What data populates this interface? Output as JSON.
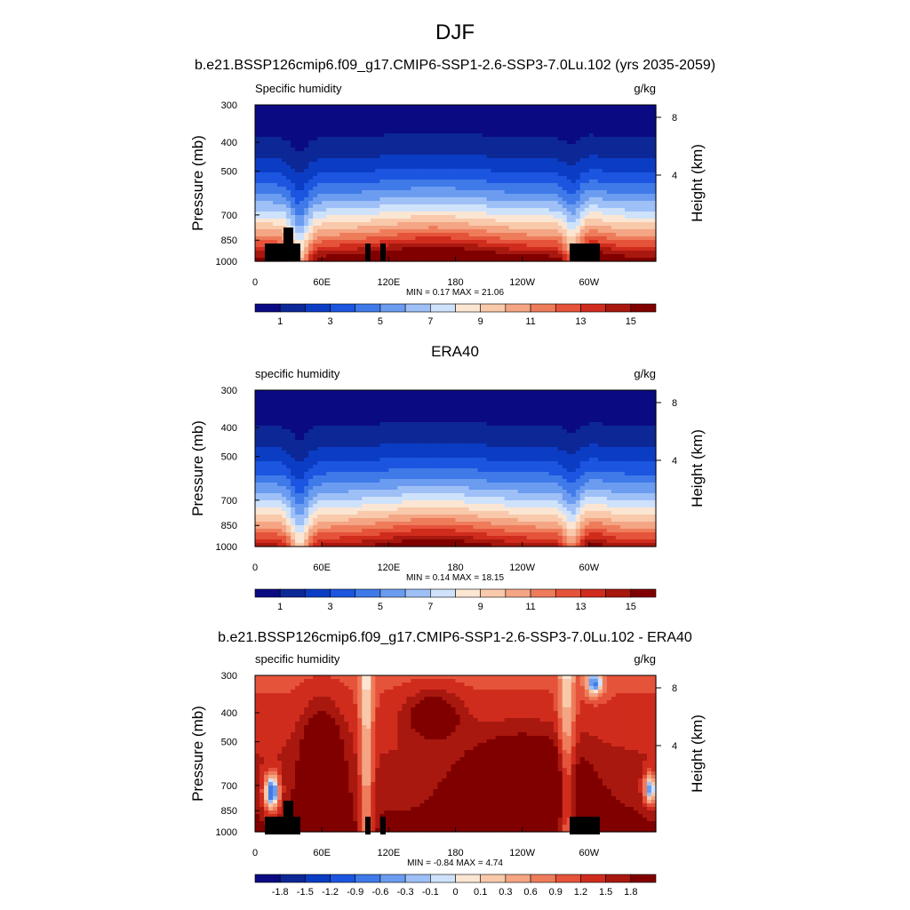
{
  "figure": {
    "title": "DJF"
  },
  "colors": {
    "humidity_ramp": [
      "#0a0a82",
      "#0c2796",
      "#0b3cc4",
      "#1b55e0",
      "#3f7ae8",
      "#6b9cf0",
      "#9ec0f7",
      "#cfe2fb",
      "#fbe6d4",
      "#f8c9aa",
      "#f4a584",
      "#ee7c5b",
      "#e5533a",
      "#d02c1d",
      "#a8180f",
      "#800000"
    ],
    "diff_ramp": [
      "#0a0a82",
      "#0c2796",
      "#0b3cc4",
      "#1b55e0",
      "#3f7ae8",
      "#6b9cf0",
      "#9ec0f7",
      "#cfe2fb",
      "#fbe6d4",
      "#f8c9aa",
      "#f4a584",
      "#ee7c5b",
      "#e5533a",
      "#d02c1d",
      "#a8180f",
      "#800000"
    ],
    "terrain": "#000000"
  },
  "chart_data": [
    {
      "type": "heatmap",
      "title": "b.e21.BSSP126cmip6.f09_g17.CMIP6-SSP1-2.6-SSP3-7.0Lu.102 (yrs 2035-2059)",
      "left_label": "Specific humidity",
      "right_label": "g/kg",
      "ylabel": "Pressure (mb)",
      "ylabel_right": "Height (km)",
      "x_ticks": [
        "0",
        "60E",
        "120E",
        "180",
        "120W",
        "60W"
      ],
      "y_ticks": [
        "300",
        "400",
        "500",
        "700",
        "850",
        "1000"
      ],
      "y_right_ticks": [
        "8",
        "4"
      ],
      "stats": "MIN =   0.17  MAX =   21.06",
      "colorbar_labels": [
        "1",
        "3",
        "5",
        "7",
        "9",
        "11",
        "13",
        "15"
      ],
      "ylim": [
        1000,
        300
      ],
      "xlim": [
        0,
        360
      ],
      "log_scale": true,
      "has_terrain": true
    },
    {
      "type": "heatmap",
      "title": "ERA40",
      "left_label": "specific humidity",
      "right_label": "g/kg",
      "ylabel": "Pressure (mb)",
      "ylabel_right": "Height (km)",
      "x_ticks": [
        "0",
        "60E",
        "120E",
        "180",
        "120W",
        "60W"
      ],
      "y_ticks": [
        "300",
        "400",
        "500",
        "700",
        "850",
        "1000"
      ],
      "y_right_ticks": [
        "8",
        "4"
      ],
      "stats": "MIN =   0.14  MAX =   18.15",
      "colorbar_labels": [
        "1",
        "3",
        "5",
        "7",
        "9",
        "11",
        "13",
        "15"
      ],
      "ylim": [
        1000,
        300
      ],
      "xlim": [
        0,
        360
      ],
      "log_scale": true,
      "has_terrain": false
    },
    {
      "type": "heatmap",
      "title": "b.e21.BSSP126cmip6.f09_g17.CMIP6-SSP1-2.6-SSP3-7.0Lu.102 - ERA40",
      "left_label": "specific humidity",
      "right_label": "g/kg",
      "ylabel": "Pressure (mb)",
      "ylabel_right": "Height (km)",
      "x_ticks": [
        "0",
        "60E",
        "120E",
        "180",
        "120W",
        "60W"
      ],
      "y_ticks": [
        "300",
        "400",
        "500",
        "700",
        "850",
        "1000"
      ],
      "y_right_ticks": [
        "8",
        "4"
      ],
      "stats": "MIN =  -0.84  MAX =   4.74",
      "colorbar_labels": [
        "-1.8",
        "-1.5",
        "-1.2",
        "-0.9",
        "-0.6",
        "-0.3",
        "-0.1",
        "0",
        "0.1",
        "0.3",
        "0.6",
        "0.9",
        "1.2",
        "1.5",
        "1.8"
      ],
      "ylim": [
        1000,
        300
      ],
      "xlim": [
        0,
        360
      ],
      "log_scale": true,
      "has_terrain": true
    }
  ]
}
